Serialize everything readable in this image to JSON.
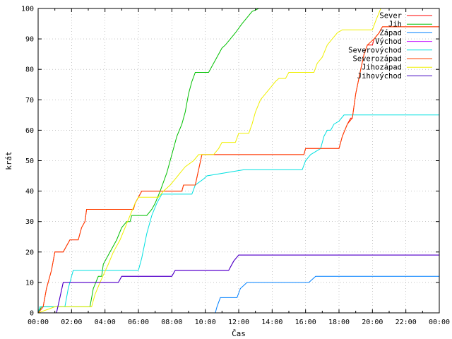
{
  "chart_data": {
    "type": "line",
    "xlabel": "Čas",
    "ylabel": "krát",
    "xlim": [
      0,
      24
    ],
    "ylim": [
      0,
      100
    ],
    "x_ticks": [
      "00:00",
      "02:00",
      "04:00",
      "06:00",
      "08:00",
      "10:00",
      "12:00",
      "14:00",
      "16:00",
      "18:00",
      "20:00",
      "22:00",
      "00:00"
    ],
    "y_ticks": [
      0,
      10,
      20,
      30,
      40,
      50,
      60,
      70,
      80,
      90,
      100
    ],
    "grid": true,
    "legend_position": "top-right",
    "series": [
      {
        "name": "Sever",
        "color": "#ff0000",
        "points": [
          [
            0,
            0
          ],
          [
            0.3,
            2
          ],
          [
            0.5,
            8
          ],
          [
            0.8,
            14
          ],
          [
            1.0,
            20
          ],
          [
            1.5,
            20
          ],
          [
            1.7,
            22
          ],
          [
            1.9,
            24
          ],
          [
            2.4,
            24
          ],
          [
            2.6,
            28
          ],
          [
            2.8,
            30
          ],
          [
            2.9,
            34
          ],
          [
            5.7,
            34
          ],
          [
            5.8,
            36
          ],
          [
            6.0,
            38
          ],
          [
            6.2,
            40
          ],
          [
            8.6,
            40
          ],
          [
            8.7,
            42
          ],
          [
            9.4,
            42
          ],
          [
            9.6,
            47
          ],
          [
            9.8,
            52
          ],
          [
            13.8,
            52
          ],
          [
            14.0,
            52
          ],
          [
            15.9,
            52
          ],
          [
            16.0,
            54
          ],
          [
            18.0,
            54
          ],
          [
            18.2,
            58
          ],
          [
            18.5,
            62
          ],
          [
            18.7,
            64
          ],
          [
            18.8,
            64
          ],
          [
            19.0,
            72
          ],
          [
            19.3,
            80
          ],
          [
            19.5,
            85
          ],
          [
            19.7,
            88
          ],
          [
            20.0,
            88
          ],
          [
            20.1,
            90
          ],
          [
            20.4,
            92
          ],
          [
            20.6,
            94
          ],
          [
            24,
            94
          ]
        ]
      },
      {
        "name": "Jih",
        "color": "#00c000",
        "points": [
          [
            0,
            0
          ],
          [
            0.2,
            2
          ],
          [
            2.0,
            2
          ],
          [
            3.1,
            2
          ],
          [
            3.3,
            8
          ],
          [
            3.6,
            12
          ],
          [
            3.8,
            12
          ],
          [
            3.9,
            16
          ],
          [
            4.3,
            20
          ],
          [
            4.7,
            24
          ],
          [
            5.0,
            28
          ],
          [
            5.3,
            30
          ],
          [
            5.5,
            30
          ],
          [
            5.6,
            32
          ],
          [
            5.9,
            32
          ],
          [
            6.5,
            32
          ],
          [
            6.8,
            34
          ],
          [
            7.0,
            36
          ],
          [
            7.3,
            40
          ],
          [
            7.7,
            46
          ],
          [
            8.0,
            52
          ],
          [
            8.3,
            58
          ],
          [
            8.6,
            62
          ],
          [
            8.8,
            66
          ],
          [
            9.0,
            72
          ],
          [
            9.2,
            76
          ],
          [
            9.4,
            79
          ],
          [
            10.2,
            79
          ],
          [
            10.4,
            81
          ],
          [
            10.7,
            84
          ],
          [
            11.0,
            87
          ],
          [
            11.2,
            88
          ],
          [
            11.5,
            90
          ],
          [
            11.8,
            92
          ],
          [
            12.2,
            95
          ],
          [
            12.5,
            97
          ],
          [
            12.8,
            99
          ],
          [
            13.2,
            100
          ],
          [
            13.5,
            100
          ]
        ]
      },
      {
        "name": "Západ",
        "color": "#0080ff",
        "points": [
          [
            0,
            0
          ],
          [
            10.6,
            0
          ],
          [
            10.7,
            2
          ],
          [
            10.9,
            5
          ],
          [
            11.9,
            5
          ],
          [
            12.1,
            8
          ],
          [
            12.5,
            10
          ],
          [
            16.2,
            10
          ],
          [
            16.6,
            12
          ],
          [
            24,
            12
          ]
        ]
      },
      {
        "name": "Východ",
        "color": "#c000ff",
        "points": [
          [
            0,
            0
          ],
          [
            1.1,
            0
          ],
          [
            1.3,
            5
          ],
          [
            1.5,
            10
          ],
          [
            4.8,
            10
          ],
          [
            5.0,
            12
          ],
          [
            8.0,
            12
          ],
          [
            8.2,
            14
          ],
          [
            11.4,
            14
          ],
          [
            11.7,
            17
          ],
          [
            12.0,
            19
          ],
          [
            24,
            19
          ]
        ]
      },
      {
        "name": "Severovýchod",
        "color": "#00e0e0",
        "points": [
          [
            0,
            0
          ],
          [
            0.1,
            2
          ],
          [
            1.6,
            2
          ],
          [
            1.8,
            8
          ],
          [
            2.1,
            14
          ],
          [
            6.0,
            14
          ],
          [
            6.2,
            18
          ],
          [
            6.5,
            26
          ],
          [
            6.8,
            32
          ],
          [
            7.1,
            36
          ],
          [
            7.4,
            39
          ],
          [
            9.2,
            39
          ],
          [
            9.4,
            42
          ],
          [
            9.9,
            44
          ],
          [
            10.1,
            45
          ],
          [
            12.3,
            47
          ],
          [
            15.8,
            47
          ],
          [
            16.0,
            50
          ],
          [
            16.3,
            52
          ],
          [
            16.9,
            54
          ],
          [
            17.1,
            58
          ],
          [
            17.3,
            60
          ],
          [
            17.5,
            60
          ],
          [
            17.7,
            62
          ],
          [
            18.0,
            63
          ],
          [
            18.3,
            65
          ],
          [
            24,
            65
          ]
        ]
      },
      {
        "name": "Severozápad",
        "color": "#ff4000",
        "points": [
          [
            0,
            0
          ],
          [
            0.3,
            2
          ],
          [
            0.5,
            8
          ],
          [
            0.8,
            14
          ],
          [
            1.0,
            20
          ],
          [
            1.5,
            20
          ],
          [
            1.7,
            22
          ],
          [
            1.9,
            24
          ],
          [
            2.4,
            24
          ],
          [
            2.6,
            28
          ],
          [
            2.8,
            30
          ],
          [
            2.9,
            34
          ],
          [
            5.7,
            34
          ],
          [
            5.8,
            36
          ],
          [
            6.0,
            38
          ],
          [
            6.2,
            40
          ],
          [
            8.6,
            40
          ],
          [
            8.7,
            42
          ],
          [
            9.4,
            42
          ],
          [
            9.6,
            47
          ],
          [
            9.8,
            52
          ],
          [
            15.9,
            52
          ],
          [
            16.0,
            54
          ],
          [
            18.0,
            54
          ],
          [
            18.2,
            58
          ],
          [
            18.5,
            62
          ],
          [
            18.8,
            64
          ],
          [
            19.0,
            72
          ],
          [
            19.3,
            80
          ],
          [
            19.5,
            85
          ],
          [
            19.7,
            88
          ],
          [
            20.1,
            90
          ],
          [
            20.4,
            92
          ],
          [
            20.6,
            94
          ],
          [
            24,
            94
          ]
        ]
      },
      {
        "name": "Jihozápad",
        "color": "#f0f000",
        "points": [
          [
            0,
            0
          ],
          [
            1.0,
            2
          ],
          [
            3.2,
            2
          ],
          [
            3.4,
            6
          ],
          [
            3.7,
            10
          ],
          [
            4.2,
            16
          ],
          [
            4.5,
            20
          ],
          [
            4.9,
            24
          ],
          [
            5.2,
            28
          ],
          [
            5.5,
            32
          ],
          [
            5.8,
            36
          ],
          [
            6.0,
            38
          ],
          [
            7.2,
            38
          ],
          [
            7.5,
            40
          ],
          [
            7.9,
            42
          ],
          [
            8.2,
            44
          ],
          [
            8.5,
            46
          ],
          [
            8.8,
            48
          ],
          [
            9.3,
            50
          ],
          [
            9.6,
            52
          ],
          [
            10.5,
            52
          ],
          [
            10.8,
            54
          ],
          [
            11.0,
            56
          ],
          [
            11.8,
            56
          ],
          [
            12.0,
            59
          ],
          [
            12.6,
            59
          ],
          [
            12.8,
            62
          ],
          [
            13.0,
            66
          ],
          [
            13.3,
            70
          ],
          [
            13.6,
            72
          ],
          [
            13.9,
            74
          ],
          [
            14.2,
            76
          ],
          [
            14.4,
            77
          ],
          [
            14.8,
            77
          ],
          [
            15.0,
            79
          ],
          [
            16.5,
            79
          ],
          [
            16.7,
            82
          ],
          [
            17.0,
            84
          ],
          [
            17.3,
            88
          ],
          [
            17.6,
            90
          ],
          [
            17.9,
            92
          ],
          [
            18.2,
            93
          ],
          [
            20.0,
            93
          ],
          [
            20.2,
            96
          ],
          [
            20.5,
            100
          ]
        ]
      },
      {
        "name": "Jihovýchod",
        "color": "#4000c0",
        "points": [
          [
            0,
            0
          ],
          [
            1.1,
            0
          ],
          [
            1.3,
            5
          ],
          [
            1.5,
            10
          ],
          [
            4.8,
            10
          ],
          [
            5.0,
            12
          ],
          [
            8.0,
            12
          ],
          [
            8.2,
            14
          ],
          [
            11.4,
            14
          ],
          [
            11.7,
            17
          ],
          [
            12.0,
            19
          ],
          [
            24,
            19
          ]
        ]
      }
    ]
  }
}
